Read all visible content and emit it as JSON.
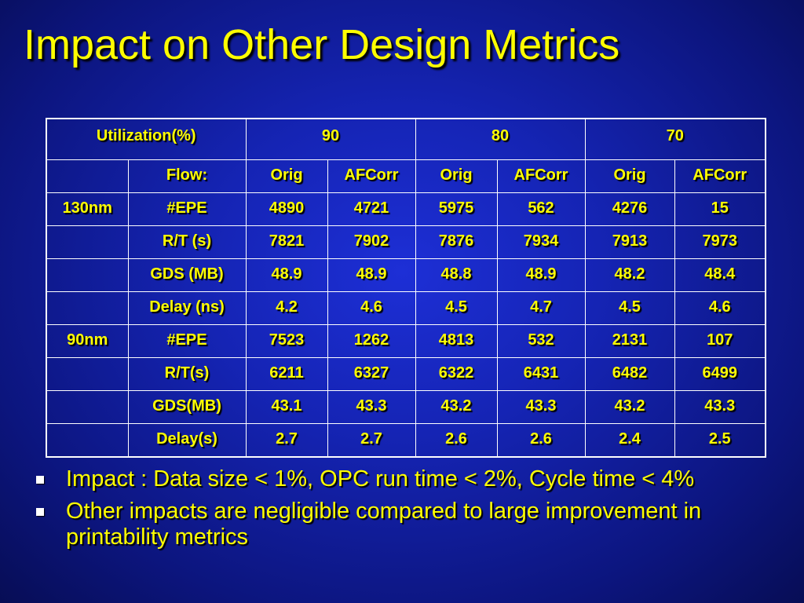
{
  "slide": {
    "title": "Impact on Other Design Metrics"
  },
  "table": {
    "header": {
      "label": "Utilization(%)",
      "groups": [
        "90",
        "80",
        "70"
      ]
    },
    "subheader": {
      "flow_label": "Flow:",
      "columns": [
        "Orig",
        "AFCorr",
        "Orig",
        "AFCorr",
        "Orig",
        "AFCorr"
      ]
    },
    "rows": [
      {
        "node": "130nm",
        "metric": "#EPE",
        "values": [
          "4890",
          "4721",
          "5975",
          "562",
          "4276",
          "15"
        ]
      },
      {
        "node": "",
        "metric": "R/T (s)",
        "values": [
          "7821",
          "7902",
          "7876",
          "7934",
          "7913",
          "7973"
        ]
      },
      {
        "node": "",
        "metric": "GDS (MB)",
        "values": [
          "48.9",
          "48.9",
          "48.8",
          "48.9",
          "48.2",
          "48.4"
        ]
      },
      {
        "node": "",
        "metric": "Delay (ns)",
        "values": [
          "4.2",
          "4.6",
          "4.5",
          "4.7",
          "4.5",
          "4.6"
        ]
      },
      {
        "node": "90nm",
        "metric": "#EPE",
        "values": [
          "7523",
          "1262",
          "4813",
          "532",
          "2131",
          "107"
        ]
      },
      {
        "node": "",
        "metric": "R/T(s)",
        "values": [
          "6211",
          "6327",
          "6322",
          "6431",
          "6482",
          "6499"
        ]
      },
      {
        "node": "",
        "metric": "GDS(MB)",
        "values": [
          "43.1",
          "43.3",
          "43.2",
          "43.3",
          "43.2",
          "43.3"
        ]
      },
      {
        "node": "",
        "metric": "Delay(s)",
        "values": [
          "2.7",
          "2.7",
          "2.6",
          "2.6",
          "2.4",
          "2.5"
        ]
      }
    ]
  },
  "bullets": [
    "Impact : Data size < 1%, OPC run time < 2%, Cycle time < 4%",
    "Other impacts are negligible compared to large improvement in printability metrics"
  ],
  "colors": {
    "background": "#1524b4",
    "text": "#ffff00",
    "table_border": "#ffffff",
    "bullet_marker": "#ffffff"
  }
}
